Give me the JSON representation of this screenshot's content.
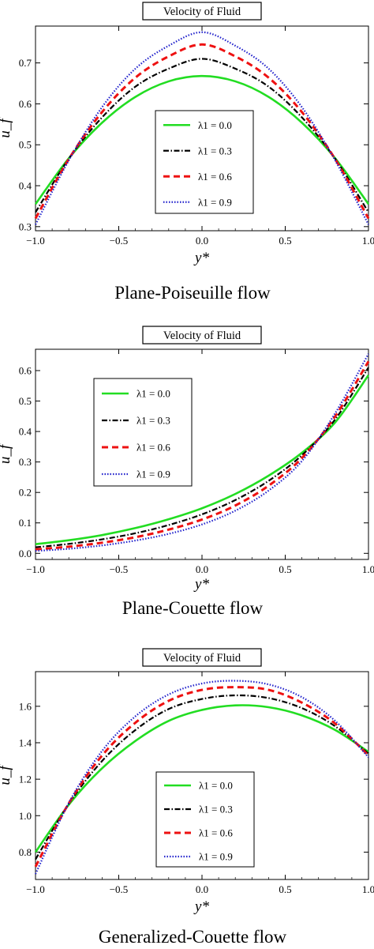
{
  "chart_data": [
    {
      "type": "line",
      "title": "Velocity of Fluid",
      "caption": "Plane-Poiseuille flow",
      "xlabel": "y*",
      "ylabel": "u_f",
      "xlim": [
        -1.0,
        1.0
      ],
      "ylim": [
        0.29,
        0.79
      ],
      "x_ticks": [
        "-1.0",
        "-0.5",
        "0.0",
        "0.5",
        "1.0"
      ],
      "y_ticks": [
        "0.3",
        "0.4",
        "0.5",
        "0.6",
        "0.7"
      ],
      "legend_position": "center",
      "x": [
        -1.0,
        -0.8,
        -0.6,
        -0.4,
        -0.2,
        0.0,
        0.2,
        0.4,
        0.6,
        0.8,
        1.0
      ],
      "series": [
        {
          "name": "λ1 = 0.0",
          "color": "#22dd22",
          "dash": "solid",
          "values": [
            0.355,
            0.467,
            0.554,
            0.617,
            0.655,
            0.668,
            0.655,
            0.617,
            0.554,
            0.467,
            0.355
          ]
        },
        {
          "name": "λ1 = 0.3",
          "color": "#000000",
          "dash": "dashdot",
          "values": [
            0.335,
            0.466,
            0.567,
            0.642,
            0.686,
            0.71,
            0.686,
            0.642,
            0.567,
            0.466,
            0.335
          ]
        },
        {
          "name": "λ1 = 0.6",
          "color": "#ee1111",
          "dash": "dashed",
          "values": [
            0.32,
            0.465,
            0.58,
            0.664,
            0.716,
            0.745,
            0.716,
            0.664,
            0.58,
            0.465,
            0.32
          ]
        },
        {
          "name": "λ1 = 0.9",
          "color": "#2222cc",
          "dash": "dotted",
          "values": [
            0.305,
            0.462,
            0.592,
            0.686,
            0.742,
            0.775,
            0.742,
            0.686,
            0.592,
            0.462,
            0.305
          ]
        }
      ]
    },
    {
      "type": "line",
      "title": "Velocity of Fluid",
      "caption": "Plane-Couette flow",
      "xlabel": "y*",
      "ylabel": "u_f",
      "xlim": [
        -1.0,
        1.0
      ],
      "ylim": [
        -0.02,
        0.67
      ],
      "x_ticks": [
        "-1.0",
        "-0.5",
        "0.0",
        "0.5",
        "1.0"
      ],
      "y_ticks": [
        "0.0",
        "0.1",
        "0.2",
        "0.3",
        "0.4",
        "0.5",
        "0.6"
      ],
      "legend_position": "upper-left",
      "x": [
        -1.0,
        -0.8,
        -0.6,
        -0.4,
        -0.2,
        0.0,
        0.2,
        0.4,
        0.6,
        0.8,
        1.0
      ],
      "series": [
        {
          "name": "λ1 = 0.0",
          "color": "#22dd22",
          "dash": "solid",
          "values": [
            0.03,
            0.043,
            0.06,
            0.083,
            0.112,
            0.148,
            0.195,
            0.255,
            0.33,
            0.43,
            0.585
          ]
        },
        {
          "name": "λ1 = 0.3",
          "color": "#000000",
          "dash": "dashdot",
          "values": [
            0.02,
            0.031,
            0.046,
            0.066,
            0.093,
            0.128,
            0.175,
            0.238,
            0.322,
            0.44,
            0.61
          ]
        },
        {
          "name": "λ1 = 0.6",
          "color": "#ee1111",
          "dash": "dashed",
          "values": [
            0.013,
            0.022,
            0.035,
            0.053,
            0.078,
            0.111,
            0.157,
            0.222,
            0.313,
            0.45,
            0.63
          ]
        },
        {
          "name": "λ1 = 0.9",
          "color": "#2222cc",
          "dash": "dotted",
          "values": [
            0.008,
            0.015,
            0.026,
            0.042,
            0.064,
            0.095,
            0.14,
            0.206,
            0.303,
            0.46,
            0.655
          ]
        }
      ]
    },
    {
      "type": "line",
      "title": "Velocity of Fluid",
      "caption": "Generalized-Couette flow",
      "xlabel": "y*",
      "ylabel": "u_f",
      "xlim": [
        -1.0,
        1.0
      ],
      "ylim": [
        0.65,
        1.79
      ],
      "x_ticks": [
        "-1.0",
        "-0.5",
        "0.0",
        "0.5",
        "1.0"
      ],
      "y_ticks": [
        "0.8",
        "1.0",
        "1.2",
        "1.4",
        "1.6"
      ],
      "legend_position": "center-bottom",
      "x": [
        -1.0,
        -0.8,
        -0.6,
        -0.4,
        -0.2,
        0.0,
        0.2,
        0.4,
        0.6,
        0.8,
        1.0
      ],
      "series": [
        {
          "name": "λ1 = 0.0",
          "color": "#22dd22",
          "dash": "solid",
          "values": [
            0.8,
            1.06,
            1.26,
            1.41,
            1.52,
            1.58,
            1.605,
            1.595,
            1.55,
            1.47,
            1.35
          ]
        },
        {
          "name": "λ1 = 0.3",
          "color": "#000000",
          "dash": "dashdot",
          "values": [
            0.76,
            1.065,
            1.3,
            1.47,
            1.585,
            1.64,
            1.66,
            1.645,
            1.59,
            1.49,
            1.34
          ]
        },
        {
          "name": "λ1 = 0.6",
          "color": "#ee1111",
          "dash": "dashed",
          "values": [
            0.72,
            1.068,
            1.33,
            1.51,
            1.63,
            1.69,
            1.705,
            1.69,
            1.62,
            1.505,
            1.33
          ]
        },
        {
          "name": "λ1 = 0.9",
          "color": "#2222cc",
          "dash": "dotted",
          "values": [
            0.68,
            1.07,
            1.355,
            1.545,
            1.665,
            1.725,
            1.74,
            1.72,
            1.65,
            1.52,
            1.32
          ]
        }
      ]
    }
  ]
}
